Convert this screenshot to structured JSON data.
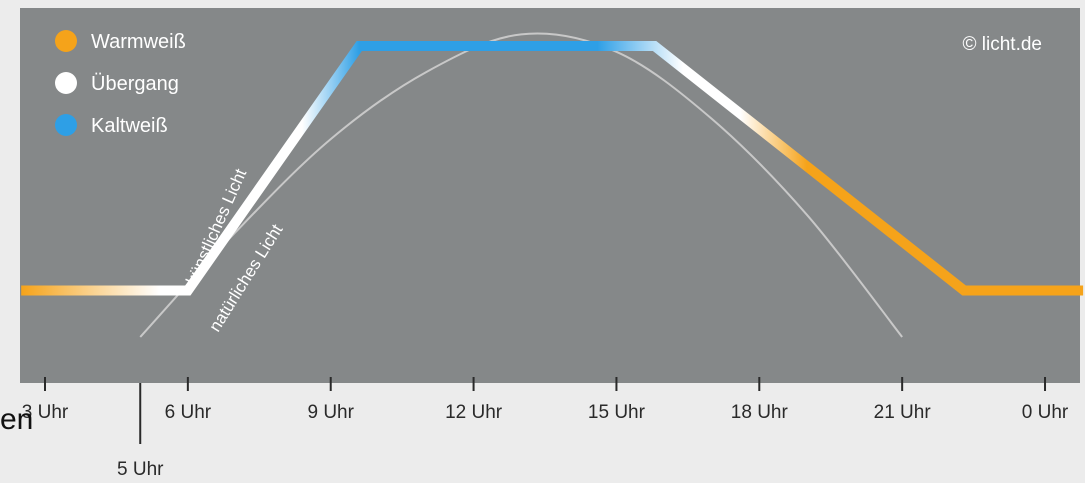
{
  "chart_data": {
    "type": "line",
    "credit": "© licht.de",
    "legend": [
      {
        "label": "Warmweiß",
        "color": "#f5a31a"
      },
      {
        "label": "Übergang",
        "color": "#ffffff"
      },
      {
        "label": "Kaltweiß",
        "color": "#2e9fe6"
      }
    ],
    "x_ticks": [
      {
        "x": 3,
        "label": "3 Uhr"
      },
      {
        "x": 6,
        "label": "6 Uhr"
      },
      {
        "x": 9,
        "label": "9 Uhr"
      },
      {
        "x": 12,
        "label": "12 Uhr"
      },
      {
        "x": 15,
        "label": "15 Uhr"
      },
      {
        "x": 18,
        "label": "18 Uhr"
      },
      {
        "x": 21,
        "label": "21 Uhr"
      },
      {
        "x": 24,
        "label": "0 Uhr"
      }
    ],
    "marker": {
      "x": 5,
      "label": "5 Uhr"
    },
    "xlim": [
      2.5,
      24.8
    ],
    "ylim": [
      0,
      1
    ],
    "series": [
      {
        "name": "künstliches Licht",
        "points": [
          [
            2.5,
            0.16
          ],
          [
            6,
            0.16
          ],
          [
            9.6,
            1.0
          ],
          [
            15.8,
            1.0
          ],
          [
            22.3,
            0.16
          ],
          [
            24.8,
            0.16
          ]
        ],
        "color_stops": [
          [
            2.5,
            "#f5a31a"
          ],
          [
            5.4,
            "#ffffff"
          ],
          [
            8.4,
            "#ffffff"
          ],
          [
            9.6,
            "#2e9fe6"
          ],
          [
            14.6,
            "#2e9fe6"
          ],
          [
            16.4,
            "#ffffff"
          ],
          [
            17.6,
            "#ffffff"
          ],
          [
            19.0,
            "#f5a31a"
          ],
          [
            24.8,
            "#f5a31a"
          ]
        ]
      },
      {
        "name": "natürliches Licht",
        "points": [
          [
            5,
            0.0
          ],
          [
            7,
            0.36
          ],
          [
            9,
            0.68
          ],
          [
            11,
            0.91
          ],
          [
            13,
            1.04
          ],
          [
            15,
            0.98
          ],
          [
            17,
            0.75
          ],
          [
            19,
            0.42
          ],
          [
            21,
            0.0
          ]
        ],
        "color": "#c8c8c8"
      }
    ]
  },
  "stray_text": "en"
}
